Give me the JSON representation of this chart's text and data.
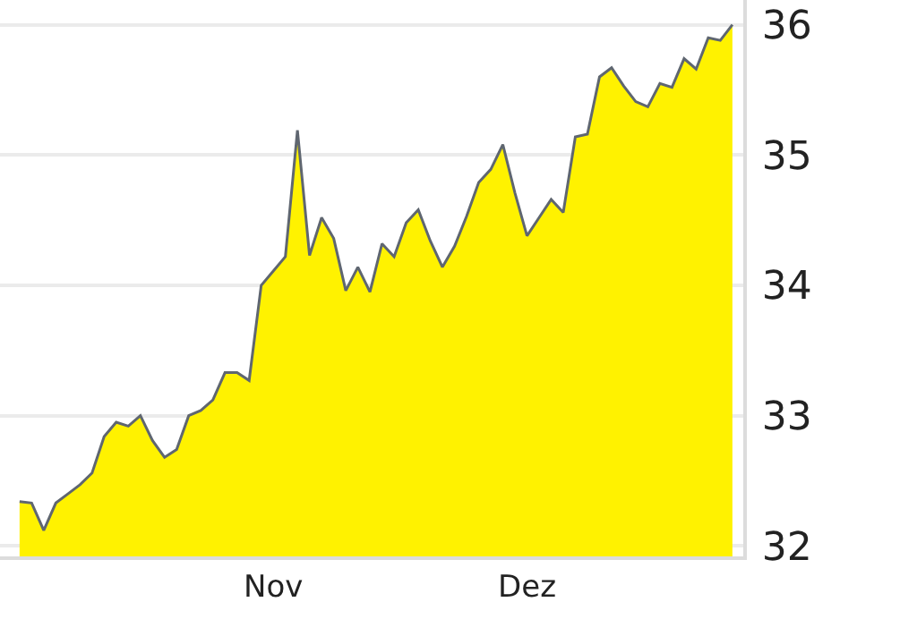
{
  "chart_data": {
    "type": "area",
    "categories": [
      null,
      null,
      null,
      null,
      null,
      null,
      null,
      null,
      null,
      null,
      null,
      null,
      null,
      null,
      null,
      null,
      null,
      null,
      null,
      null,
      null,
      "Nov",
      null,
      null,
      null,
      null,
      null,
      null,
      null,
      null,
      null,
      null,
      null,
      null,
      null,
      null,
      null,
      null,
      null,
      null,
      null,
      null,
      "Dez",
      null,
      null,
      null,
      null,
      null,
      null,
      null,
      null,
      null,
      null,
      null,
      null,
      null,
      null,
      null,
      null,
      null
    ],
    "series": [
      {
        "color": "#fff200",
        "values": [
          32.34,
          32.33,
          32.12,
          32.33,
          32.4,
          32.47,
          32.56,
          32.84,
          32.95,
          32.92,
          33.0,
          32.81,
          32.68,
          32.74,
          33.0,
          33.04,
          33.12,
          33.33,
          33.33,
          33.27,
          34.0,
          34.11,
          34.22,
          35.19,
          34.23,
          34.52,
          34.36,
          33.96,
          34.14,
          33.95,
          34.32,
          34.22,
          34.48,
          34.58,
          34.34,
          34.14,
          34.3,
          34.53,
          34.79,
          34.89,
          35.08,
          34.71,
          34.38,
          34.52,
          34.66,
          34.56,
          35.14,
          35.16,
          35.6,
          35.67,
          35.53,
          35.41,
          35.37,
          35.55,
          35.52,
          35.74,
          35.66,
          35.9,
          35.88,
          36.0
        ]
      }
    ],
    "ylim": [
      31.92,
      36.19
    ],
    "yticks": [
      32,
      33,
      34,
      35,
      36
    ],
    "grid": "y"
  }
}
